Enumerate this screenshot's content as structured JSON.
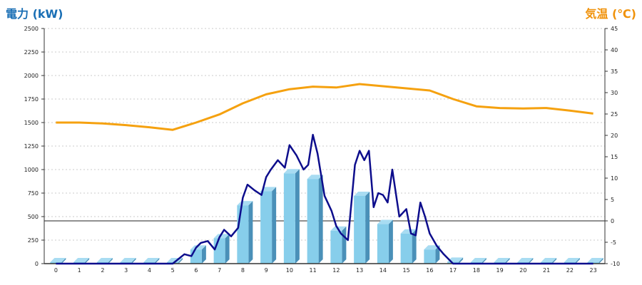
{
  "header": {
    "left_title": "電力 (kW)",
    "right_title": "気温 (℃)"
  },
  "colors": {
    "bar_front": "#87ceeb",
    "bar_side": "#4a90b8",
    "bar_top": "#a8dcf2",
    "power_line": "#0d0d8c",
    "temp_line": "#f5a10f",
    "grid": "#bbbbbb"
  },
  "chart_data": {
    "type": "bar",
    "categories": [
      "0",
      "1",
      "2",
      "3",
      "4",
      "5",
      "6",
      "7",
      "8",
      "9",
      "10",
      "11",
      "12",
      "13",
      "14",
      "15",
      "16",
      "17",
      "18",
      "19",
      "20",
      "21",
      "22",
      "23"
    ],
    "y_left": {
      "ticks": [
        0,
        250,
        500,
        750,
        1000,
        1250,
        1500,
        1750,
        2000,
        2250,
        2500
      ],
      "range": [
        0,
        2500
      ]
    },
    "y_right": {
      "ticks": [
        -10,
        -5,
        0,
        5,
        10,
        15,
        20,
        25,
        30,
        35,
        40,
        45
      ],
      "range": [
        -10,
        45
      ]
    },
    "grid": true,
    "zero_line_right": 0,
    "series": [
      {
        "kind": "bar",
        "axis": "left",
        "values": [
          0,
          0,
          0,
          0,
          0,
          0,
          150,
          270,
          620,
          770,
          960,
          900,
          350,
          720,
          420,
          320,
          150,
          20,
          0,
          0,
          0,
          0,
          0,
          0
        ]
      },
      {
        "kind": "line",
        "axis": "left",
        "x": [
          0,
          5,
          5.5,
          5.8,
          6,
          6.2,
          6.5,
          6.8,
          7,
          7.2,
          7.5,
          7.8,
          8,
          8.2,
          8.5,
          8.8,
          9,
          9.2,
          9.5,
          9.8,
          10,
          10.3,
          10.6,
          10.8,
          11,
          11.2,
          11.5,
          11.8,
          12,
          12.2,
          12.5,
          12.8,
          13,
          13.2,
          13.4,
          13.6,
          13.8,
          14,
          14.2,
          14.4,
          14.7,
          15,
          15.2,
          15.4,
          15.6,
          15.8,
          16,
          16.3,
          16.6,
          17,
          23
        ],
        "values": [
          0,
          0,
          100,
          80,
          170,
          220,
          240,
          150,
          280,
          360,
          290,
          380,
          700,
          840,
          780,
          730,
          920,
          1000,
          1100,
          1020,
          1260,
          1150,
          1000,
          1050,
          1370,
          1170,
          720,
          560,
          400,
          320,
          250,
          1050,
          1200,
          1100,
          1200,
          600,
          750,
          730,
          650,
          1000,
          500,
          580,
          320,
          300,
          650,
          500,
          320,
          190,
          100,
          0,
          0
        ]
      },
      {
        "kind": "line",
        "axis": "right",
        "x": [
          0,
          1,
          2,
          3,
          4,
          5,
          6,
          7,
          8,
          9,
          10,
          11,
          12,
          13,
          14,
          15,
          16,
          17,
          18,
          19,
          20,
          21,
          22,
          23
        ],
        "values": [
          23,
          23,
          22.8,
          22.4,
          21.9,
          21.3,
          23,
          24.9,
          27.5,
          29.6,
          30.8,
          31.4,
          31.2,
          32,
          31.5,
          31,
          30.5,
          28.5,
          26.8,
          26.4,
          26.3,
          26.4,
          25.8,
          25.1
        ]
      }
    ]
  }
}
